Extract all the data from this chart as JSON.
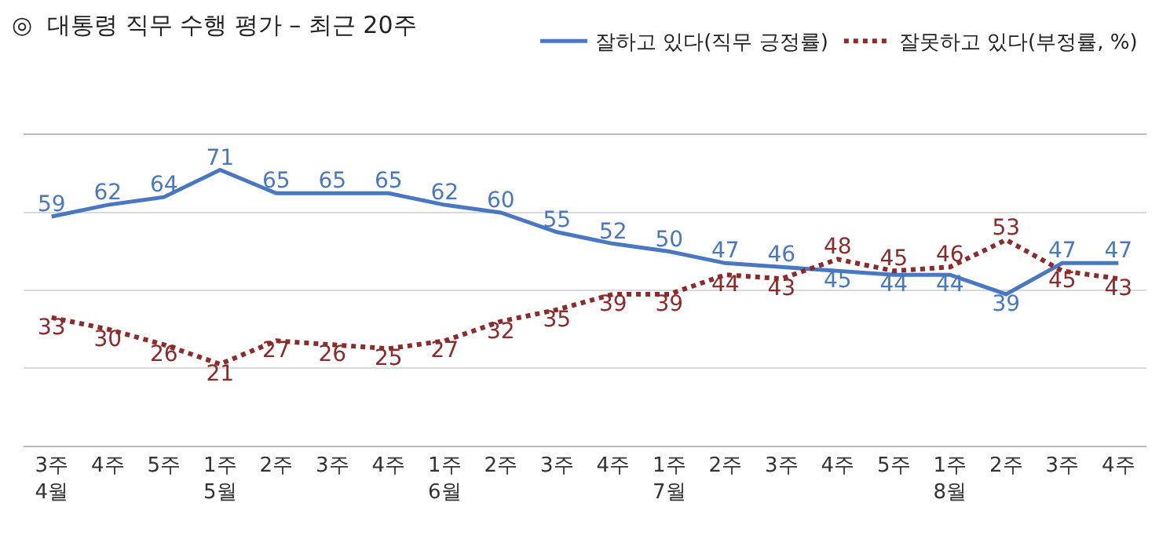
{
  "chart_data": {
    "type": "line",
    "title": "◎  대통령 직무 수행 평가 – 최근 20주",
    "categories": [
      "3주\n4월",
      "4주",
      "5주",
      "1주\n5월",
      "2주",
      "3주",
      "4주",
      "1주\n6월",
      "2주",
      "3주",
      "4주",
      "1주\n7월",
      "2주",
      "3주",
      "4주",
      "5주",
      "1주\n8월",
      "2주",
      "3주",
      "4주"
    ],
    "series": [
      {
        "name": "잘하고 있다(직무 긍정률)",
        "color": "#4a78c0",
        "line_style": "solid",
        "values": [
          59,
          62,
          64,
          71,
          65,
          65,
          65,
          62,
          60,
          55,
          52,
          50,
          47,
          46,
          45,
          44,
          44,
          39,
          47,
          47
        ]
      },
      {
        "name": "잘못하고 있다(부정률, %)",
        "color": "#8b2b2b",
        "line_style": "dotted",
        "values": [
          33,
          30,
          26,
          21,
          27,
          26,
          25,
          27,
          32,
          35,
          39,
          39,
          44,
          43,
          48,
          45,
          46,
          53,
          45,
          43
        ]
      }
    ],
    "ylim": [
      0,
      80
    ],
    "yticks": [
      {
        "value": 0,
        "label": null
      },
      {
        "value": 20,
        "label": null
      },
      {
        "value": 40,
        "label": null
      },
      {
        "value": 60,
        "label": null
      },
      {
        "value": 80,
        "label": null
      }
    ],
    "grid": "y",
    "legend": "top right",
    "data_labels": true,
    "tick_labels": "x",
    "marker": "none"
  }
}
